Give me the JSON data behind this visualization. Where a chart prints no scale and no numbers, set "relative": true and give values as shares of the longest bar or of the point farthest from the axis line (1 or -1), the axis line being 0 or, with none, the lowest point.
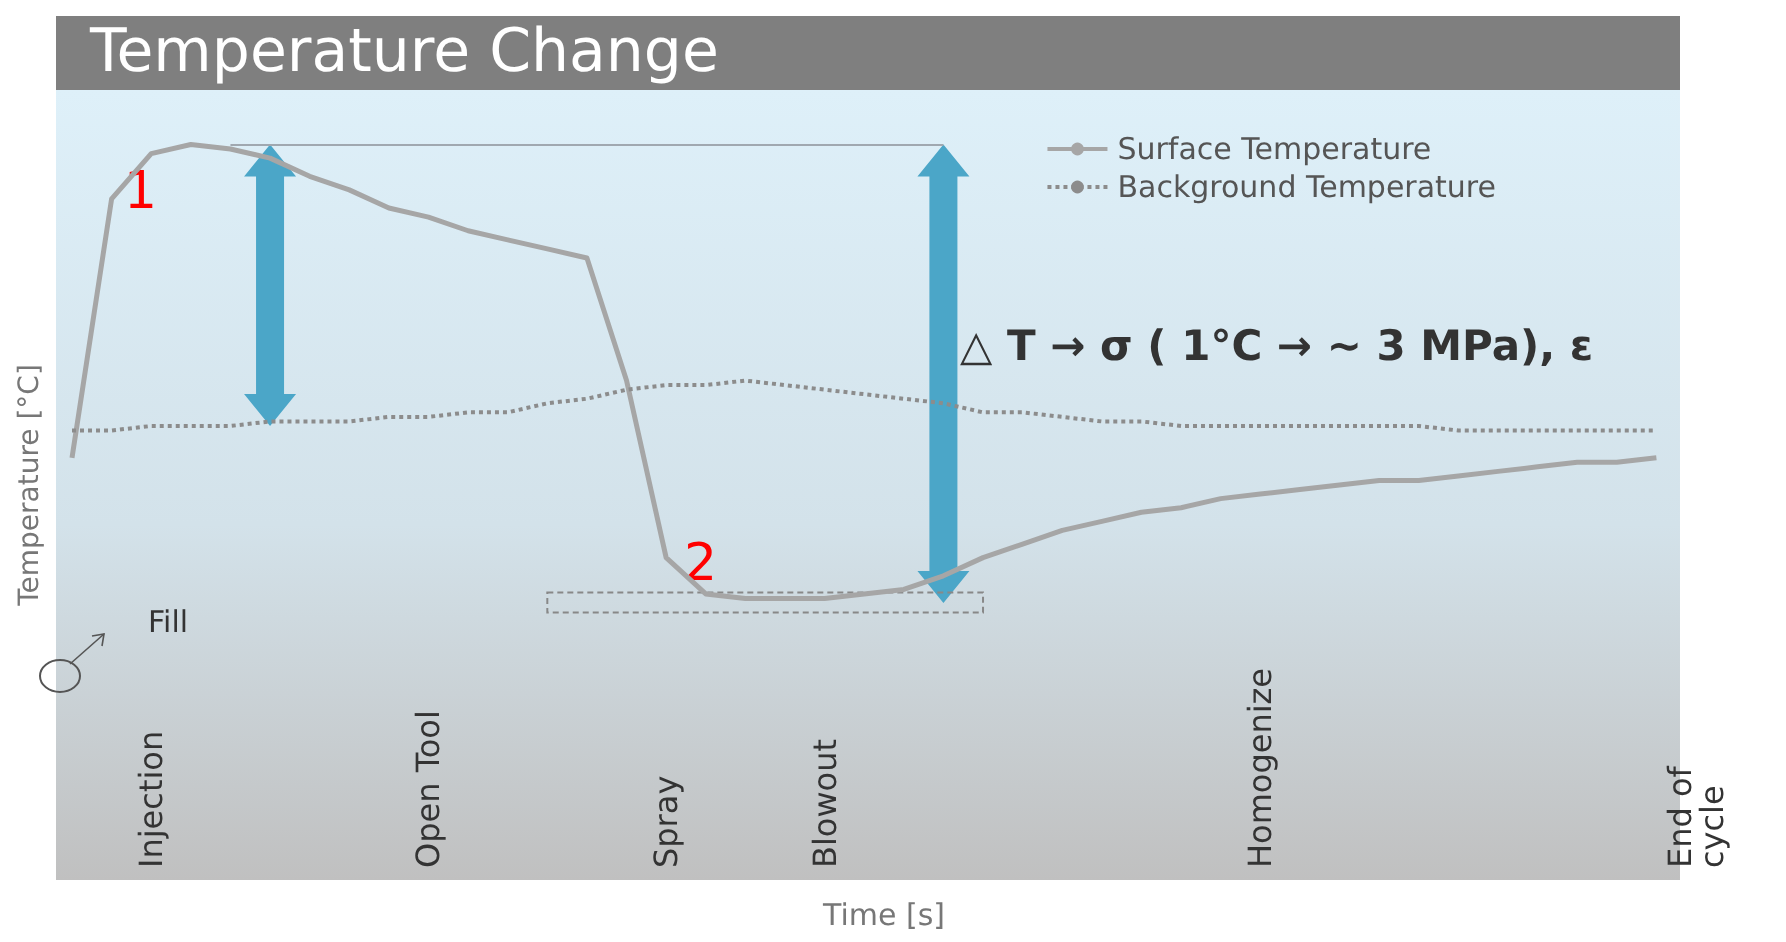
{
  "chart_data": {
    "type": "line",
    "title": "Temperature Change",
    "xlabel": "Time [s]",
    "ylabel": "Temperature [°C]",
    "relative": true,
    "categories": [
      null,
      null,
      "Injection",
      null,
      null,
      null,
      null,
      null,
      null,
      "Open Tool",
      null,
      null,
      null,
      null,
      null,
      "Spray",
      null,
      null,
      null,
      "Blowout",
      null,
      null,
      null,
      null,
      null,
      null,
      null,
      null,
      null,
      null,
      "Homogenize",
      null,
      null,
      null,
      null,
      null,
      null,
      null,
      null,
      null,
      null,
      "End of\ncycle"
    ],
    "series": [
      {
        "name": "Surface Temperature",
        "color": "#a6a6a6",
        "line_style": "solid",
        "values": [
          0.31,
          0.88,
          0.98,
          1,
          0.99,
          0.97,
          0.93,
          0.9,
          0.86,
          0.84,
          0.81,
          0.79,
          0.77,
          0.75,
          0.48,
          0.09,
          0.01,
          0,
          0,
          0,
          0.01,
          0.02,
          0.05,
          0.09,
          0.12,
          0.15,
          0.17,
          0.19,
          0.2,
          0.22,
          0.23,
          0.24,
          0.25,
          0.26,
          0.26,
          0.27,
          0.28,
          0.29,
          0.3,
          0.3,
          0.31,
          null
        ]
      },
      {
        "name": "Background Temperature",
        "color": "#8c8c8c",
        "line_style": "dotted",
        "values": [
          0.37,
          0.37,
          0.38,
          0.38,
          0.38,
          0.39,
          0.39,
          0.39,
          0.4,
          0.4,
          0.41,
          0.41,
          0.43,
          0.44,
          0.46,
          0.47,
          0.47,
          0.48,
          0.47,
          0.46,
          0.45,
          0.44,
          0.43,
          0.41,
          0.41,
          0.4,
          0.39,
          0.39,
          0.38,
          0.38,
          0.38,
          0.38,
          0.38,
          0.38,
          0.38,
          0.37,
          0.37,
          0.37,
          0.37,
          0.37,
          0.37,
          null
        ]
      }
    ],
    "ref_lines": [
      {
        "axis": "y",
        "value": 1,
        "color": "#a0a8b0"
      }
    ],
    "annotations": [
      "1",
      "2",
      "△ T → σ ( 1°C → ~ 3 MPa), ε",
      "Fill"
    ],
    "legend": "top right",
    "marker": "none",
    "grid": false
  }
}
